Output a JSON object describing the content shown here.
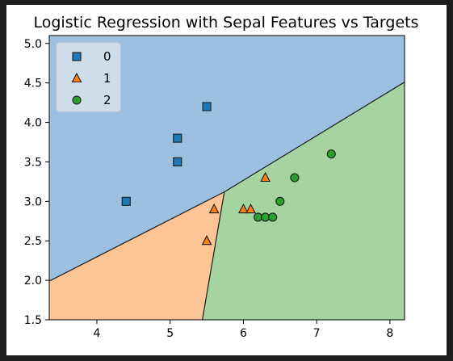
{
  "chart_data": {
    "type": "scatter",
    "title": "Logistic Regression with Sepal Features vs Targets",
    "xlabel": "",
    "ylabel": "",
    "xlim": [
      3.35,
      8.2
    ],
    "ylim": [
      1.5,
      5.1
    ],
    "xticks": [
      "4",
      "5",
      "6",
      "7",
      "8"
    ],
    "yticks": [
      "1.5",
      "2.0",
      "2.5",
      "3.0",
      "3.5",
      "4.0",
      "4.5",
      "5.0"
    ],
    "grid": false,
    "legend_position": "top-left",
    "regions": [
      {
        "name": "0",
        "color": "#9ec0e0",
        "polygon": [
          [
            3.35,
            5.1
          ],
          [
            8.2,
            5.1
          ],
          [
            8.2,
            4.51
          ],
          [
            5.74,
            3.12
          ],
          [
            3.35,
            1.99
          ]
        ]
      },
      {
        "name": "1",
        "color": "#fdc596",
        "polygon": [
          [
            3.35,
            1.99
          ],
          [
            5.74,
            3.12
          ],
          [
            5.44,
            1.5
          ],
          [
            3.35,
            1.5
          ]
        ]
      },
      {
        "name": "2",
        "color": "#a5d4a0",
        "polygon": [
          [
            5.74,
            3.12
          ],
          [
            8.2,
            4.51
          ],
          [
            8.2,
            1.5
          ],
          [
            5.44,
            1.5
          ]
        ]
      }
    ],
    "boundaries": [
      [
        [
          3.35,
          1.99
        ],
        [
          5.74,
          3.12
        ]
      ],
      [
        [
          5.74,
          3.12
        ],
        [
          8.2,
          4.51
        ]
      ],
      [
        [
          5.74,
          3.12
        ],
        [
          5.44,
          1.5
        ]
      ]
    ],
    "series": [
      {
        "name": "0",
        "marker": "square",
        "color": "#1f77b4",
        "points": [
          [
            5.5,
            4.2
          ],
          [
            5.1,
            3.8
          ],
          [
            5.1,
            3.5
          ],
          [
            4.4,
            3.0
          ]
        ]
      },
      {
        "name": "1",
        "marker": "triangle",
        "color": "#ff7f0e",
        "points": [
          [
            6.3,
            3.3
          ],
          [
            5.6,
            2.9
          ],
          [
            6.0,
            2.9
          ],
          [
            6.1,
            2.9
          ],
          [
            5.5,
            2.5
          ]
        ]
      },
      {
        "name": "2",
        "marker": "circle",
        "color": "#2ca02c",
        "points": [
          [
            7.2,
            3.6
          ],
          [
            6.7,
            3.3
          ],
          [
            6.5,
            3.0
          ],
          [
            6.2,
            2.8
          ],
          [
            6.3,
            2.8
          ],
          [
            6.4,
            2.8
          ]
        ]
      }
    ]
  }
}
